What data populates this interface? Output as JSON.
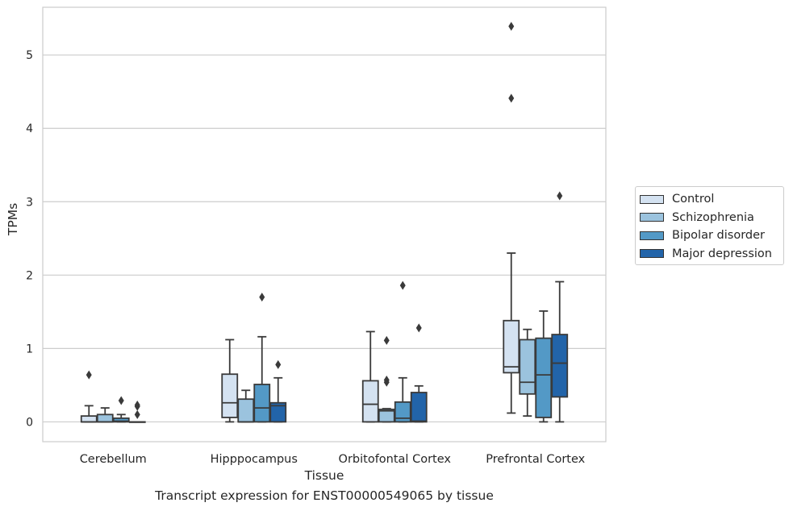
{
  "chart_data": {
    "type": "box",
    "title": "",
    "xlabel": "Tissue",
    "ylabel": "TPMs",
    "ylim": [
      -0.27,
      5.65
    ],
    "yticks": [
      0,
      1,
      2,
      3,
      4,
      5
    ],
    "grid": "horizontal",
    "legend_position": "right",
    "categories": [
      "Cerebellum",
      "Hipppocampus",
      "Orbitofontal Cortex",
      "Prefrontal Cortex"
    ],
    "series": [
      {
        "name": "Control",
        "color": "#d4e2f1",
        "boxes": [
          {
            "whislo": 0,
            "q1": 0,
            "med": 0,
            "q3": 0.08,
            "whishi": 0.22,
            "fliers": [
              0.64
            ]
          },
          {
            "whislo": 0,
            "q1": 0.06,
            "med": 0.26,
            "q3": 0.65,
            "whishi": 1.12,
            "fliers": []
          },
          {
            "whislo": 0,
            "q1": 0,
            "med": 0.24,
            "q3": 0.56,
            "whishi": 1.23,
            "fliers": []
          },
          {
            "whislo": 0.12,
            "q1": 0.67,
            "med": 0.75,
            "q3": 1.38,
            "whishi": 2.3,
            "fliers": [
              4.41,
              5.39
            ]
          }
        ]
      },
      {
        "name": "Schizophrenia",
        "color": "#9bc3de",
        "boxes": [
          {
            "whislo": 0,
            "q1": 0,
            "med": 0,
            "q3": 0.1,
            "whishi": 0.19,
            "fliers": []
          },
          {
            "whislo": 0,
            "q1": 0,
            "med": 0,
            "q3": 0.31,
            "whishi": 0.43,
            "fliers": []
          },
          {
            "whislo": 0,
            "q1": 0,
            "med": 0.15,
            "q3": 0.17,
            "whishi": 0.18,
            "fliers": [
              1.11,
              0.54,
              0.57
            ]
          },
          {
            "whislo": 0.08,
            "q1": 0.38,
            "med": 0.54,
            "q3": 1.12,
            "whishi": 1.26,
            "fliers": []
          }
        ]
      },
      {
        "name": "Bipolar disorder",
        "color": "#5399c6",
        "boxes": [
          {
            "whislo": 0,
            "q1": 0,
            "med": 0.01,
            "q3": 0.05,
            "whishi": 0.1,
            "fliers": [
              0.29
            ]
          },
          {
            "whislo": 0,
            "q1": 0,
            "med": 0.19,
            "q3": 0.51,
            "whishi": 1.16,
            "fliers": [
              1.7
            ]
          },
          {
            "whislo": 0,
            "q1": 0,
            "med": 0.05,
            "q3": 0.27,
            "whishi": 0.6,
            "fliers": [
              1.86
            ]
          },
          {
            "whislo": 0,
            "q1": 0.06,
            "med": 0.64,
            "q3": 1.14,
            "whishi": 1.51,
            "fliers": []
          }
        ]
      },
      {
        "name": "Major depression",
        "color": "#2264a9",
        "boxes": [
          {
            "whislo": 0,
            "q1": 0,
            "med": 0,
            "q3": 0,
            "whishi": 0,
            "fliers": [
              0.1,
              0.21,
              0.23
            ]
          },
          {
            "whislo": 0,
            "q1": 0,
            "med": 0.22,
            "q3": 0.26,
            "whishi": 0.6,
            "fliers": [
              0.78
            ]
          },
          {
            "whislo": 0,
            "q1": 0,
            "med": 0.01,
            "q3": 0.4,
            "whishi": 0.49,
            "fliers": [
              1.28
            ]
          },
          {
            "whislo": 0,
            "q1": 0.34,
            "med": 0.8,
            "q3": 1.19,
            "whishi": 1.91,
            "fliers": [
              3.08
            ]
          }
        ]
      }
    ],
    "caption": "Transcript expression for ENST00000549065 by tissue"
  }
}
